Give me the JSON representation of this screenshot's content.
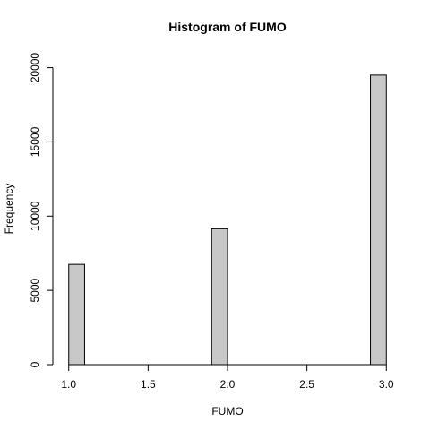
{
  "chart_data": {
    "type": "bar",
    "title": "Histogram of FUMO",
    "xlabel": "FUMO",
    "ylabel": "Frequency",
    "bins": [
      {
        "x0": 1.0,
        "x1": 1.1,
        "count": 6750
      },
      {
        "x0": 1.1,
        "x1": 1.2,
        "count": 0
      },
      {
        "x0": 1.2,
        "x1": 1.3,
        "count": 0
      },
      {
        "x0": 1.3,
        "x1": 1.4,
        "count": 0
      },
      {
        "x0": 1.4,
        "x1": 1.5,
        "count": 0
      },
      {
        "x0": 1.5,
        "x1": 1.6,
        "count": 0
      },
      {
        "x0": 1.6,
        "x1": 1.7,
        "count": 0
      },
      {
        "x0": 1.7,
        "x1": 1.8,
        "count": 0
      },
      {
        "x0": 1.8,
        "x1": 1.9,
        "count": 0
      },
      {
        "x0": 1.9,
        "x1": 2.0,
        "count": 9150
      },
      {
        "x0": 2.0,
        "x1": 2.1,
        "count": 0
      },
      {
        "x0": 2.1,
        "x1": 2.2,
        "count": 0
      },
      {
        "x0": 2.2,
        "x1": 2.3,
        "count": 0
      },
      {
        "x0": 2.3,
        "x1": 2.4,
        "count": 0
      },
      {
        "x0": 2.4,
        "x1": 2.5,
        "count": 0
      },
      {
        "x0": 2.5,
        "x1": 2.6,
        "count": 0
      },
      {
        "x0": 2.6,
        "x1": 2.7,
        "count": 0
      },
      {
        "x0": 2.7,
        "x1": 2.8,
        "count": 0
      },
      {
        "x0": 2.8,
        "x1": 2.9,
        "count": 0
      },
      {
        "x0": 2.9,
        "x1": 3.0,
        "count": 19500
      }
    ],
    "xlim": [
      0.9,
      3.1
    ],
    "ylim": [
      0,
      21000
    ],
    "x_ticks": [
      1.0,
      1.5,
      2.0,
      2.5,
      3.0
    ],
    "x_tick_labels": [
      "1.0",
      "1.5",
      "2.0",
      "2.5",
      "3.0"
    ],
    "y_ticks": [
      0,
      5000,
      10000,
      15000,
      20000
    ],
    "y_tick_labels": [
      "0",
      "5000",
      "10000",
      "15000",
      "20000"
    ],
    "bar_color": "#c8c8c8",
    "edge_color": "#000000",
    "grid": false,
    "legend": "none"
  }
}
